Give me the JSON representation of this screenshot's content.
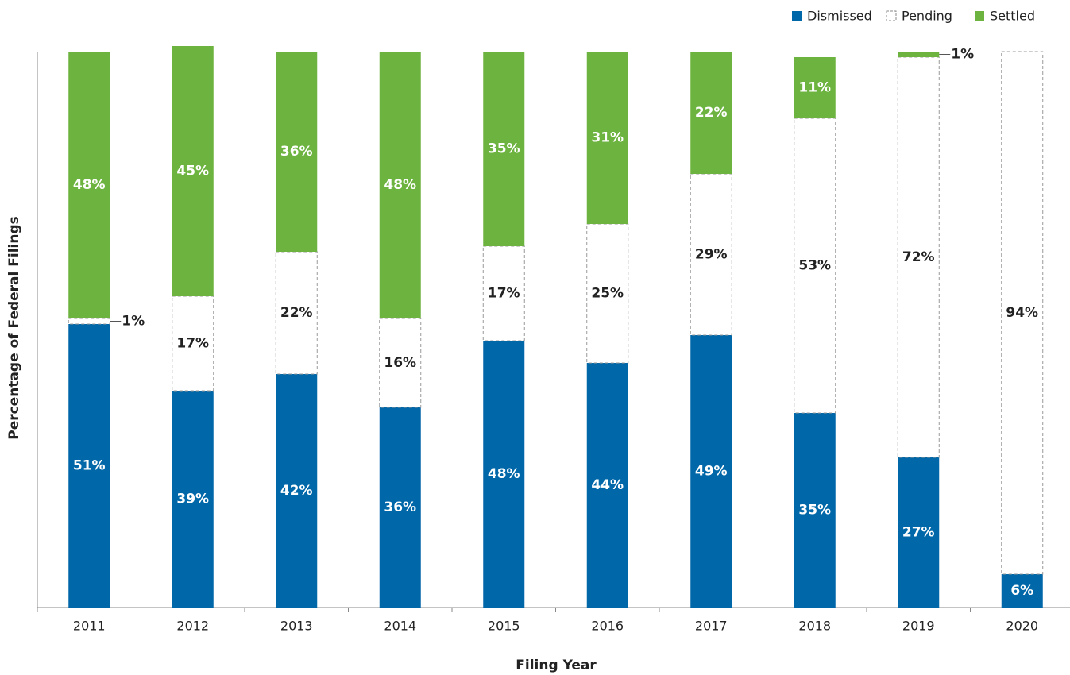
{
  "chart_data": {
    "type": "stacked_bar",
    "x_label": "Filing Year",
    "y_label": "Percentage of Federal Filings",
    "categories": [
      "2011",
      "2012",
      "2013",
      "2014",
      "2015",
      "2016",
      "2017",
      "2018",
      "2019",
      "2020"
    ],
    "ylim": [
      0,
      100
    ],
    "series": [
      {
        "name": "Dismissed",
        "color": "#0067a8",
        "values": [
          51,
          39,
          42,
          36,
          48,
          44,
          49,
          35,
          27,
          6
        ],
        "value_labels": [
          "51%",
          "39%",
          "42%",
          "36%",
          "48%",
          "44%",
          "49%",
          "35%",
          "27%",
          "6%"
        ]
      },
      {
        "name": "Pending",
        "color": "#ffffff",
        "values": [
          1,
          17,
          22,
          16,
          17,
          25,
          29,
          53,
          72,
          94
        ],
        "value_labels": [
          "1%",
          "17%",
          "22%",
          "16%",
          "17%",
          "25%",
          "29%",
          "53%",
          "72%",
          "94%"
        ]
      },
      {
        "name": "Settled",
        "color": "#6db33f",
        "values": [
          48,
          45,
          36,
          48,
          35,
          31,
          22,
          11,
          1,
          null
        ],
        "value_labels": [
          "48%",
          "45%",
          "36%",
          "48%",
          "35%",
          "31%",
          "22%",
          "11%",
          "1%",
          null
        ]
      }
    ]
  }
}
